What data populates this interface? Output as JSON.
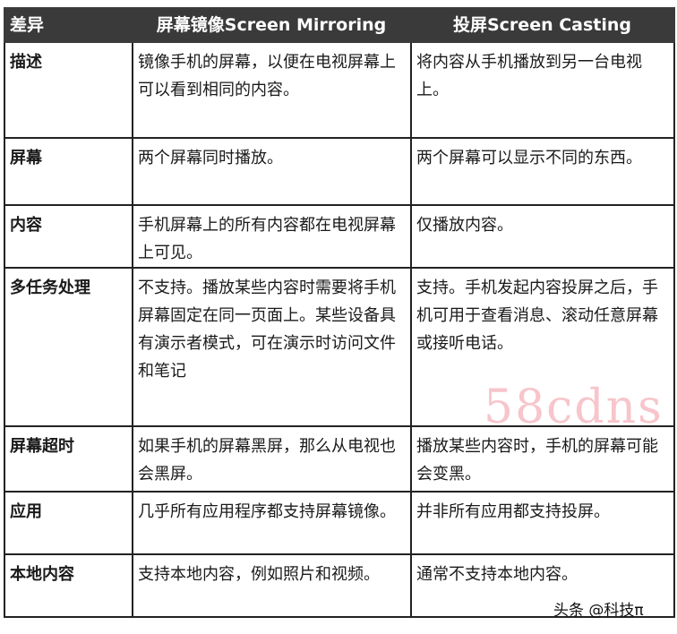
{
  "headers": [
    "差异",
    "屏幕镜像Screen Mirroring",
    "投屏Screen Casting"
  ],
  "rows": [
    {
      "key": "描述",
      "mirroring": "镜像手机的屏幕，以便在电视屏幕上可以看到相同的内容。",
      "casting": "将内容从手机播放到另一台电视上。"
    },
    {
      "key": "屏幕",
      "mirroring": "两个屏幕同时播放。",
      "casting": "两个屏幕可以显示不同的东西。"
    },
    {
      "key": "内容",
      "mirroring": "手机屏幕上的所有内容都在电视屏幕上可见。",
      "casting": "仅播放内容。"
    },
    {
      "key": "多任务处理",
      "mirroring": "不支持。播放某些内容时需要将手机屏幕固定在同一页面上。某些设备具有演示者模式，可在演示时访问文件和笔记",
      "casting": "支持。手机发起内容投屏之后，手机可用于查看消息、滚动任意屏幕或接听电话。"
    },
    {
      "key": "屏幕超时",
      "mirroring": "如果手机的屏幕黑屏，那么从电视也会黑屏。",
      "casting": "播放某些内容时，手机的屏幕可能会变黑。"
    },
    {
      "key": "应用",
      "mirroring": "几乎所有应用程序都支持屏幕镜像。",
      "casting": "并非所有应用都支持投屏。"
    },
    {
      "key": "本地内容",
      "mirroring": "支持本地内容，例如照片和视频。",
      "casting": "通常不支持本地内容。"
    }
  ],
  "watermark": "头条 @科技π",
  "watermark_bg": "58cdns"
}
